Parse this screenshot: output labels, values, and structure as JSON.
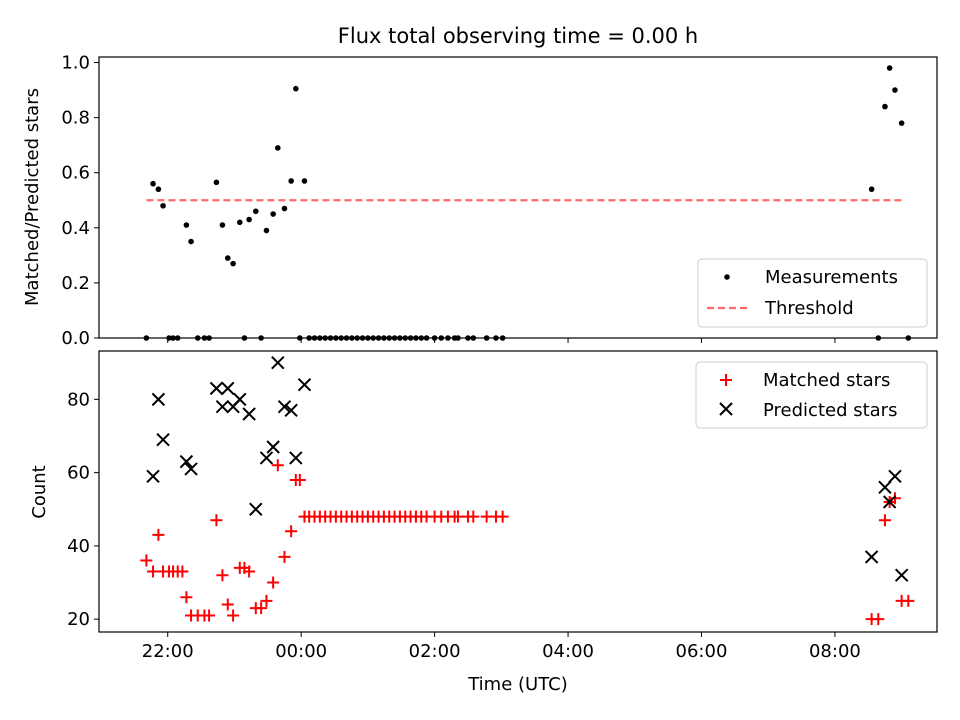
{
  "chart_data": [
    {
      "type": "scatter",
      "title": "Flux total observing time = 0.00 h",
      "ylabel": "Matched/Predicted stars",
      "ylim": [
        0,
        1.02
      ],
      "y_ticks": [
        "0.0",
        "0.2",
        "0.4",
        "0.6",
        "0.8",
        "1.0"
      ],
      "legend": {
        "placement": "lower-right"
      },
      "grid": false,
      "series": [
        {
          "name": "Measurements",
          "style": "dot",
          "color": "#000000",
          "points": [
            [
              21.68,
              0
            ],
            [
              21.78,
              0.56
            ],
            [
              21.86,
              0.54
            ],
            [
              21.93,
              0.48
            ],
            [
              22.02,
              0
            ],
            [
              22.08,
              0
            ],
            [
              22.15,
              0
            ],
            [
              22.28,
              0.41
            ],
            [
              22.35,
              0.35
            ],
            [
              22.45,
              0
            ],
            [
              22.55,
              0
            ],
            [
              22.62,
              0
            ],
            [
              22.73,
              0.565
            ],
            [
              22.82,
              0.41
            ],
            [
              22.9,
              0.29
            ],
            [
              22.98,
              0.27
            ],
            [
              23.08,
              0.42
            ],
            [
              23.15,
              0
            ],
            [
              23.22,
              0.43
            ],
            [
              23.32,
              0.46
            ],
            [
              23.4,
              0
            ],
            [
              23.48,
              0.39
            ],
            [
              23.58,
              0.45
            ],
            [
              23.65,
              0.69
            ],
            [
              23.75,
              0.47
            ],
            [
              23.85,
              0.57
            ],
            [
              23.92,
              0.905
            ],
            [
              23.98,
              0
            ],
            [
              24.05,
              0.57
            ],
            [
              24.12,
              0
            ],
            [
              24.2,
              0
            ],
            [
              24.28,
              0
            ],
            [
              24.36,
              0
            ],
            [
              24.44,
              0
            ],
            [
              24.52,
              0
            ],
            [
              24.6,
              0
            ],
            [
              24.68,
              0
            ],
            [
              24.76,
              0
            ],
            [
              24.84,
              0
            ],
            [
              24.92,
              0
            ],
            [
              25.0,
              0
            ],
            [
              25.08,
              0
            ],
            [
              25.16,
              0
            ],
            [
              25.24,
              0
            ],
            [
              25.32,
              0
            ],
            [
              25.4,
              0
            ],
            [
              25.48,
              0
            ],
            [
              25.56,
              0
            ],
            [
              25.64,
              0
            ],
            [
              25.72,
              0
            ],
            [
              25.8,
              0
            ],
            [
              25.88,
              0
            ],
            [
              26.0,
              0
            ],
            [
              26.1,
              0
            ],
            [
              26.2,
              0
            ],
            [
              26.3,
              0
            ],
            [
              26.35,
              0
            ],
            [
              26.5,
              0
            ],
            [
              26.58,
              0
            ],
            [
              26.78,
              0
            ],
            [
              26.92,
              0
            ],
            [
              27.02,
              0
            ],
            [
              32.55,
              0.54
            ],
            [
              32.65,
              0
            ],
            [
              32.75,
              0.84
            ],
            [
              32.82,
              0.98
            ],
            [
              32.9,
              0.9
            ],
            [
              33.0,
              0.78
            ],
            [
              33.1,
              0
            ]
          ]
        },
        {
          "name": "Threshold",
          "style": "dashed-line",
          "color": "#ff6b6b",
          "points": [
            [
              21.68,
              0.5
            ],
            [
              33.0,
              0.5
            ]
          ]
        }
      ]
    },
    {
      "type": "scatter",
      "xlabel": "Time (UTC)",
      "ylabel": "Count",
      "xlim": [
        20.97,
        33.53
      ],
      "ylim": [
        16.5,
        93.2
      ],
      "x_ticks": [
        "22:00",
        "00:00",
        "02:00",
        "04:00",
        "06:00",
        "08:00"
      ],
      "y_ticks": [
        "20",
        "40",
        "60",
        "80"
      ],
      "legend": {
        "placement": "top-right"
      },
      "grid": false,
      "series": [
        {
          "name": "Matched stars",
          "style": "plus",
          "color": "#ff0000",
          "points": [
            [
              21.68,
              36
            ],
            [
              21.78,
              33
            ],
            [
              21.86,
              43
            ],
            [
              21.93,
              33
            ],
            [
              22.02,
              33
            ],
            [
              22.08,
              33
            ],
            [
              22.15,
              33
            ],
            [
              22.22,
              33
            ],
            [
              22.28,
              26
            ],
            [
              22.35,
              21
            ],
            [
              22.45,
              21
            ],
            [
              22.55,
              21
            ],
            [
              22.62,
              21
            ],
            [
              22.73,
              47
            ],
            [
              22.82,
              32
            ],
            [
              22.9,
              24
            ],
            [
              22.98,
              21
            ],
            [
              23.08,
              34
            ],
            [
              23.15,
              34
            ],
            [
              23.22,
              33
            ],
            [
              23.32,
              23
            ],
            [
              23.4,
              23
            ],
            [
              23.48,
              25
            ],
            [
              23.58,
              30
            ],
            [
              23.65,
              62
            ],
            [
              23.75,
              37
            ],
            [
              23.85,
              44
            ],
            [
              23.92,
              58
            ],
            [
              23.98,
              58
            ],
            [
              24.05,
              48
            ],
            [
              24.12,
              48
            ],
            [
              24.2,
              48
            ],
            [
              24.28,
              48
            ],
            [
              24.36,
              48
            ],
            [
              24.44,
              48
            ],
            [
              24.52,
              48
            ],
            [
              24.6,
              48
            ],
            [
              24.68,
              48
            ],
            [
              24.76,
              48
            ],
            [
              24.84,
              48
            ],
            [
              24.92,
              48
            ],
            [
              25.0,
              48
            ],
            [
              25.08,
              48
            ],
            [
              25.16,
              48
            ],
            [
              25.24,
              48
            ],
            [
              25.32,
              48
            ],
            [
              25.4,
              48
            ],
            [
              25.48,
              48
            ],
            [
              25.56,
              48
            ],
            [
              25.64,
              48
            ],
            [
              25.72,
              48
            ],
            [
              25.8,
              48
            ],
            [
              25.88,
              48
            ],
            [
              26.0,
              48
            ],
            [
              26.1,
              48
            ],
            [
              26.2,
              48
            ],
            [
              26.3,
              48
            ],
            [
              26.35,
              48
            ],
            [
              26.5,
              48
            ],
            [
              26.58,
              48
            ],
            [
              26.78,
              48
            ],
            [
              26.92,
              48
            ],
            [
              27.02,
              48
            ],
            [
              32.55,
              20
            ],
            [
              32.65,
              20
            ],
            [
              32.75,
              47
            ],
            [
              32.82,
              52
            ],
            [
              32.9,
              53
            ],
            [
              33.0,
              25
            ],
            [
              33.1,
              25
            ]
          ]
        },
        {
          "name": "Predicted stars",
          "style": "x",
          "color": "#000000",
          "points": [
            [
              21.78,
              59
            ],
            [
              21.86,
              80
            ],
            [
              21.93,
              69
            ],
            [
              22.28,
              63
            ],
            [
              22.35,
              61
            ],
            [
              22.73,
              83
            ],
            [
              22.82,
              78
            ],
            [
              22.9,
              83
            ],
            [
              22.98,
              78
            ],
            [
              23.08,
              80
            ],
            [
              23.22,
              76
            ],
            [
              23.32,
              50
            ],
            [
              23.48,
              64
            ],
            [
              23.58,
              67
            ],
            [
              23.65,
              90
            ],
            [
              23.75,
              78
            ],
            [
              23.85,
              77
            ],
            [
              23.92,
              64
            ],
            [
              24.05,
              84
            ],
            [
              32.55,
              37
            ],
            [
              32.75,
              56
            ],
            [
              32.82,
              52
            ],
            [
              32.9,
              59
            ],
            [
              33.0,
              32
            ]
          ]
        }
      ]
    }
  ]
}
